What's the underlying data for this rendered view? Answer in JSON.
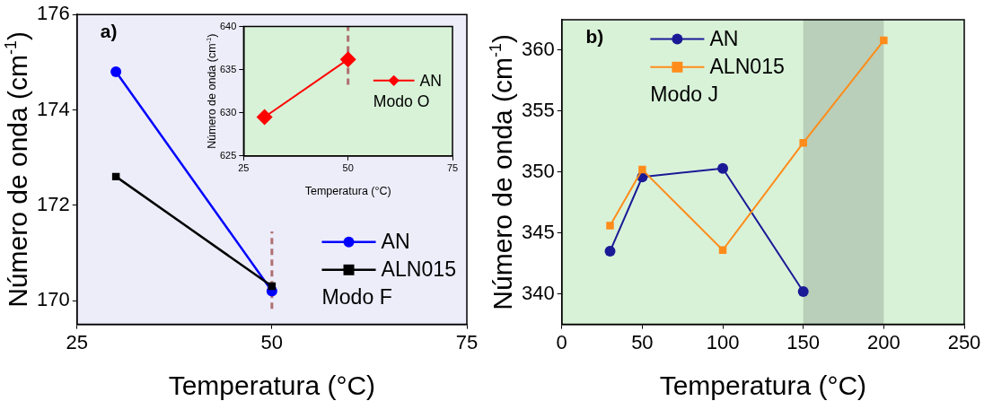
{
  "chart_data": [
    {
      "type": "line",
      "title": "a)",
      "xlabel": "Temperatura (°C)",
      "ylabel": "Número de onda (cm$^{-1}$)",
      "x": [
        30,
        50
      ],
      "xlim": [
        25,
        75
      ],
      "xticks": [
        25,
        50,
        75
      ],
      "ylim": [
        169.5,
        176
      ],
      "yticks": [
        170,
        172,
        174,
        176
      ],
      "grid": false,
      "legend": "bottom right",
      "series": [
        {
          "name": "AN",
          "color": "#0000ff",
          "marker": "circle",
          "values": [
            174.8,
            170.2
          ]
        },
        {
          "name": "ALN015",
          "color": "#000000",
          "marker": "square",
          "values": [
            172.6,
            170.3
          ]
        }
      ],
      "ref_lines": [
        {
          "axis": "x",
          "value": 50,
          "color": "#b07070",
          "line_style": "dashed"
        }
      ],
      "annotations": [
        "Modo F"
      ]
    },
    {
      "type": "line",
      "xlabel": "Temperatura (°C)",
      "ylabel": "Número de onda (cm$^{-1}$)",
      "x": [
        30,
        50
      ],
      "xlim": [
        25,
        75
      ],
      "xticks": [
        25,
        50,
        75
      ],
      "ylim": [
        625,
        640
      ],
      "yticks": [
        625,
        630,
        635,
        640
      ],
      "grid": false,
      "legend": "right",
      "series": [
        {
          "name": "AN",
          "color": "#ff0000",
          "marker": "diamond",
          "values": [
            629.5,
            636.2
          ]
        }
      ],
      "ref_lines": [
        {
          "axis": "x",
          "value": 50,
          "color": "#b07070",
          "line_style": "dashed"
        }
      ],
      "annotations": [
        "Modo O"
      ]
    },
    {
      "type": "line",
      "title": "b)",
      "xlabel": "Temperatura (°C)",
      "ylabel": "Número de onda (cm$^{-1}$)",
      "x": [
        30,
        50,
        100,
        150,
        200
      ],
      "xlim": [
        0,
        250
      ],
      "xticks": [
        0,
        50,
        100,
        150,
        200,
        250
      ],
      "ylim": [
        337.5,
        362.5
      ],
      "yticks": [
        340,
        345,
        350,
        355,
        360
      ],
      "grid": false,
      "legend": "top left",
      "series": [
        {
          "name": "AN",
          "color": "#1a1a96",
          "marker": "circle",
          "values": [
            343.5,
            349.6,
            350.3,
            340.2,
            null
          ]
        },
        {
          "name": "ALN015",
          "color": "#ff8c1a",
          "marker": "square",
          "values": [
            345.6,
            350.2,
            343.6,
            352.4,
            360.8
          ]
        }
      ],
      "bands": [
        {
          "axis": "x",
          "from": 150,
          "to": 200,
          "color": "#b9cfb9"
        }
      ],
      "annotations": [
        "Modo J"
      ]
    }
  ]
}
